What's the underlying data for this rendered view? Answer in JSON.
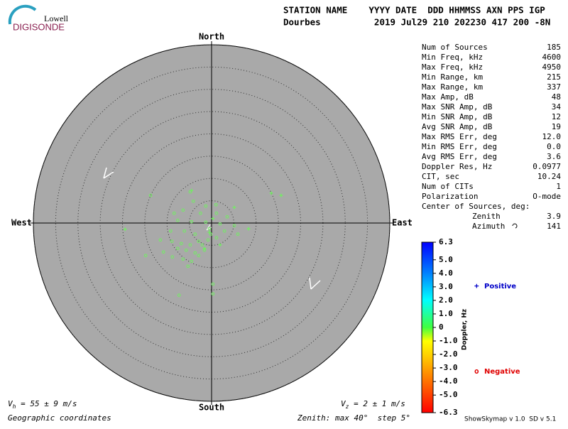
{
  "logo": {
    "top": "Lowell",
    "bottom": "DIGISONDE"
  },
  "header": {
    "columns": "STATION NAME    YYYY DATE  DDD HHMMSS AXN PPS IGP",
    "values": "Dourbes          2019 Jul29 210 202230 417 200 -8N"
  },
  "stats": [
    [
      "Num of Sources",
      "185"
    ],
    [
      "Min Freq, kHz",
      "4600"
    ],
    [
      "Max Freq, kHz",
      "4950"
    ],
    [
      "Min Range, km",
      "215"
    ],
    [
      "Max Range, km",
      "337"
    ],
    [
      "Max Amp, dB",
      "48"
    ],
    [
      "Max SNR Amp, dB",
      "34"
    ],
    [
      "Min SNR Amp, dB",
      "12"
    ],
    [
      "Avg SNR Amp, dB",
      "19"
    ],
    [
      "Max RMS Err, deg",
      "12.0"
    ],
    [
      "Min RMS Err, deg",
      "0.0"
    ],
    [
      "Avg RMS Err, deg",
      "3.6"
    ],
    [
      "Doppler Res, Hz",
      "0.0977"
    ],
    [
      "CIT, sec",
      "10.24"
    ],
    [
      "Num of CITs",
      "1"
    ],
    [
      "Polarization",
      "O-mode"
    ]
  ],
  "center": {
    "title": "Center of Sources, deg:",
    "rows": [
      [
        "Zenith",
        "3.9"
      ],
      [
        "Azimuth",
        "141"
      ]
    ]
  },
  "footer": {
    "vh": {
      "symbol": "V",
      "subscript": "h",
      "text": " = 55 ± 9 m/s"
    },
    "vz": {
      "symbol": "V",
      "subscript": "z",
      "text": " = 2 ± 1 m/s"
    },
    "coords": "Geographic coordinates",
    "zenith": "Zenith: max 40°  step 5°",
    "version": "ShowSkymap v 1.0  SD v 5.1"
  },
  "chart_data": {
    "type": "skymap",
    "rlim": [
      0,
      40
    ],
    "rticks": [
      5,
      10,
      15,
      20,
      25,
      30,
      35,
      40
    ],
    "compass": {
      "north": "North",
      "south": "South",
      "east": "East",
      "west": "West"
    },
    "series": [
      {
        "name": "Positive",
        "marker": "+",
        "legend_color": "#0000c8",
        "color": "#70f060",
        "x": [
          13.4,
          15.6,
          -19.4,
          8.3,
          0.3,
          5.1,
          -0.5,
          1.9,
          -1.6,
          -4.5
        ],
        "y": [
          6.7,
          6.2,
          -1.4,
          -1.3,
          1.0,
          3.5,
          -2.1,
          -4.9,
          -5.7,
          7.3
        ]
      },
      {
        "name": "Negative",
        "marker": "o",
        "legend_color": "#e00000",
        "color": "#70f060",
        "x": [
          -4.8,
          -13.7,
          -4.1,
          -1.3,
          1.0,
          -6.4,
          -8.4,
          -2.5,
          1.1,
          3.5,
          -7.6,
          -4.5,
          -1.3,
          1.9,
          5.1,
          -9.2,
          -6.1,
          -3.7,
          -0.5,
          2.9,
          5.9,
          -11.5,
          -8.9,
          -6.8,
          -4.8,
          -2.9,
          -0.8,
          1.1,
          -7.6,
          -5.7,
          -3.7,
          -1.6,
          -10.8,
          -14.8,
          -8.8,
          -6.4,
          -4.5,
          -2.9,
          -5.3,
          0.3,
          -7.3,
          0.3,
          -2.1,
          -0.2
        ],
        "y": [
          7.0,
          6.2,
          4.9,
          3.8,
          4.1,
          2.9,
          2.2,
          2.2,
          2.2,
          1.4,
          0.6,
          0.3,
          0.2,
          -0.2,
          -0.6,
          -1.8,
          -1.8,
          -2.5,
          -1.3,
          -1.8,
          -2.5,
          -3.8,
          -4.1,
          -4.6,
          -4.9,
          -4.1,
          -3.8,
          -3.3,
          -5.7,
          -6.1,
          -6.7,
          -6.1,
          -6.5,
          -7.3,
          -7.6,
          -8.1,
          -8.6,
          -7.3,
          -9.7,
          -13.7,
          -16.2,
          -15.9,
          -4.9,
          -2.5
        ]
      }
    ],
    "colorbar": {
      "label": "Doppler, Hz",
      "lim": [
        -6.3,
        6.3
      ],
      "ticks": [
        6.3,
        {
          "value": 5,
          "label": "5.0"
        },
        {
          "value": 4,
          "label": "4.0"
        },
        {
          "value": 3,
          "label": "3.0"
        },
        {
          "value": 2,
          "label": "2.0"
        },
        {
          "value": 1,
          "label": "1.0"
        },
        0,
        {
          "value": -1,
          "label": "-1.0"
        },
        {
          "value": -2,
          "label": "-2.0"
        },
        {
          "value": -3,
          "label": "-3.0"
        },
        {
          "value": -4,
          "label": "-4.0"
        },
        {
          "value": -5,
          "label": "-5.0"
        },
        -6.3
      ]
    }
  }
}
